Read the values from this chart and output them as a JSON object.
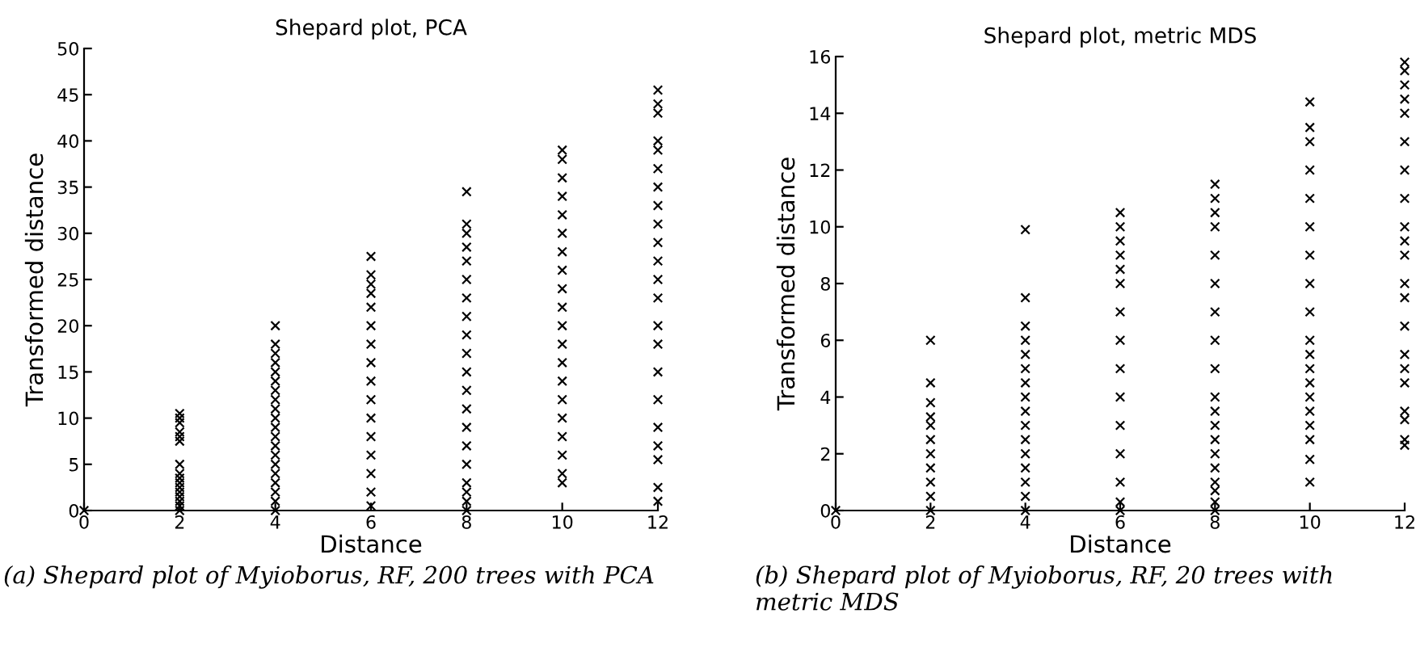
{
  "chart_data": [
    {
      "type": "scatter",
      "title": "Shepard plot, PCA",
      "xlabel": "Distance",
      "ylabel": "Transformed distance",
      "marker": "cross",
      "grid": false,
      "series": [
        {
          "color": "#000000",
          "x": [
            0,
            2,
            2,
            2,
            2,
            2,
            2,
            2,
            2,
            2,
            2,
            2,
            2,
            2,
            2,
            2,
            2,
            4,
            4,
            4,
            4,
            4,
            4,
            4,
            4,
            4,
            4,
            4,
            4,
            4,
            4,
            4,
            4,
            4,
            4,
            4,
            4,
            6,
            6,
            6,
            6,
            6,
            6,
            6,
            6,
            6,
            6,
            6,
            6,
            6,
            6,
            6,
            6,
            8,
            8,
            8,
            8,
            8,
            8,
            8,
            8,
            8,
            8,
            8,
            8,
            8,
            8,
            8,
            8,
            8,
            8,
            8,
            8,
            10,
            10,
            10,
            10,
            10,
            10,
            10,
            10,
            10,
            10,
            10,
            10,
            10,
            10,
            10,
            10,
            10,
            10,
            10,
            10,
            12,
            12,
            12,
            12,
            12,
            12,
            12,
            12,
            12,
            12,
            12,
            12,
            12,
            12,
            12,
            12,
            12,
            12,
            12,
            12,
            12,
            12
          ],
          "values": [
            0,
            0,
            0.5,
            1,
            1.5,
            2,
            2.5,
            3,
            3.5,
            4,
            5,
            7.5,
            8,
            8.5,
            9.5,
            10,
            10.5,
            0,
            1,
            2,
            3,
            4,
            5,
            6,
            7,
            8,
            9,
            10,
            11,
            12,
            13,
            14,
            15,
            16,
            17,
            18,
            20,
            0.5,
            2,
            4,
            6,
            8,
            10,
            12,
            14,
            16,
            18,
            20,
            22,
            23.5,
            24.5,
            25.5,
            27.5,
            0,
            1,
            2,
            3,
            5,
            7,
            9,
            11,
            13,
            15,
            17,
            19,
            21,
            23,
            25,
            27,
            28.5,
            30,
            31,
            34.5,
            3,
            4,
            6,
            8,
            10,
            12,
            14,
            16,
            18,
            20,
            22,
            24,
            26,
            28,
            30,
            32,
            34,
            36,
            38,
            39,
            1,
            2.5,
            5.5,
            7,
            9,
            12,
            15,
            18,
            20,
            23,
            25,
            27,
            29,
            31,
            33,
            35,
            37,
            39,
            40,
            43,
            44,
            45.5
          ]
        }
      ],
      "xlim": [
        0,
        12
      ],
      "xticks": [
        0,
        2,
        4,
        6,
        8,
        10,
        12
      ],
      "ylim": [
        0,
        50
      ],
      "yticks": [
        0,
        5,
        10,
        15,
        20,
        25,
        30,
        35,
        40,
        45,
        50
      ],
      "annotations": [
        "(a) Shepard plot of Myioborus, RF, 200 trees with PCA"
      ]
    },
    {
      "type": "scatter",
      "title": "Shepard plot, metric MDS",
      "xlabel": "Distance",
      "ylabel": "Transformed distance",
      "marker": "cross",
      "grid": false,
      "series": [
        {
          "color": "#000000",
          "x": [
            0,
            2,
            2,
            2,
            2,
            2,
            2,
            2,
            2,
            2,
            2,
            2,
            4,
            4,
            4,
            4,
            4,
            4,
            4,
            4,
            4,
            4,
            4,
            4,
            4,
            4,
            4,
            4,
            6,
            6,
            6,
            6,
            6,
            6,
            6,
            6,
            6,
            6,
            6,
            6,
            6,
            6,
            6,
            8,
            8,
            8,
            8,
            8,
            8,
            8,
            8,
            8,
            8,
            8,
            8,
            8,
            8,
            8,
            8,
            8,
            8,
            8,
            10,
            10,
            10,
            10,
            10,
            10,
            10,
            10,
            10,
            10,
            10,
            10,
            10,
            10,
            10,
            10,
            10,
            10,
            10,
            12,
            12,
            12,
            12,
            12,
            12,
            12,
            12,
            12,
            12,
            12,
            12,
            12,
            12,
            12,
            12,
            12,
            12,
            12,
            12,
            12
          ],
          "values": [
            0,
            0,
            0.5,
            1,
            1.5,
            2,
            2.5,
            3,
            3.3,
            3.8,
            4.5,
            6,
            0,
            0.5,
            1,
            1.5,
            2,
            2.5,
            3,
            3.5,
            4,
            4.5,
            5,
            5.5,
            6,
            6.5,
            7.5,
            9.9,
            0,
            0.3,
            1,
            2,
            3,
            4,
            5,
            6,
            7,
            8,
            8.5,
            9,
            9.5,
            10,
            10.5,
            0,
            0.3,
            0.7,
            1,
            1.5,
            2,
            2.5,
            3,
            3.5,
            4,
            5,
            6,
            7,
            8,
            9,
            10,
            10.5,
            11,
            11.5,
            1,
            1.8,
            2.5,
            3,
            3.5,
            4,
            4.5,
            5,
            5.5,
            6,
            7,
            8,
            9,
            10,
            11,
            12,
            13,
            13.5,
            14.4,
            2.3,
            2.5,
            3.2,
            3.5,
            4.5,
            5,
            5.5,
            6.5,
            7.5,
            8,
            9,
            9.5,
            10,
            11,
            12,
            13,
            14,
            14.5,
            15,
            15.5,
            15.8
          ]
        }
      ],
      "xlim": [
        0,
        12
      ],
      "xticks": [
        0,
        2,
        4,
        6,
        8,
        10,
        12
      ],
      "ylim": [
        0,
        16
      ],
      "yticks": [
        0,
        2,
        4,
        6,
        8,
        10,
        12,
        14,
        16
      ],
      "annotations": [
        "(b) Shepard plot of Myioborus, RF, 20 trees with metric MDS"
      ]
    }
  ]
}
